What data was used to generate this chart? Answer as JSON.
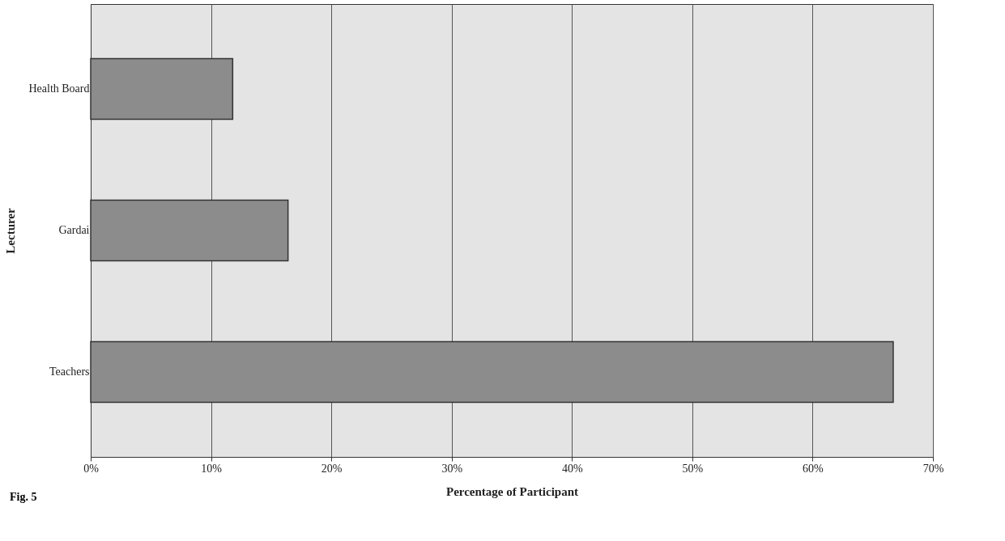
{
  "chart_data": {
    "type": "bar",
    "orientation": "horizontal",
    "categories": [
      "Health Board",
      "Gardai",
      "Teachers"
    ],
    "values": [
      11.8,
      16.4,
      66.7
    ],
    "color": "#8c8c8c",
    "xlim": [
      0,
      70
    ],
    "xticks": [
      {
        "value": 0,
        "label": "0%"
      },
      {
        "value": 10,
        "label": "10%"
      },
      {
        "value": 20,
        "label": "20%"
      },
      {
        "value": 30,
        "label": "30%"
      },
      {
        "value": 40,
        "label": "40%"
      },
      {
        "value": 50,
        "label": "50%"
      },
      {
        "value": 60,
        "label": "60%"
      },
      {
        "value": 70,
        "label": "70%"
      }
    ],
    "xlabel": "Percentage of Participant",
    "ylabel": "Lecturer",
    "annotations": [
      "Fig. 5"
    ],
    "grid": "x"
  }
}
